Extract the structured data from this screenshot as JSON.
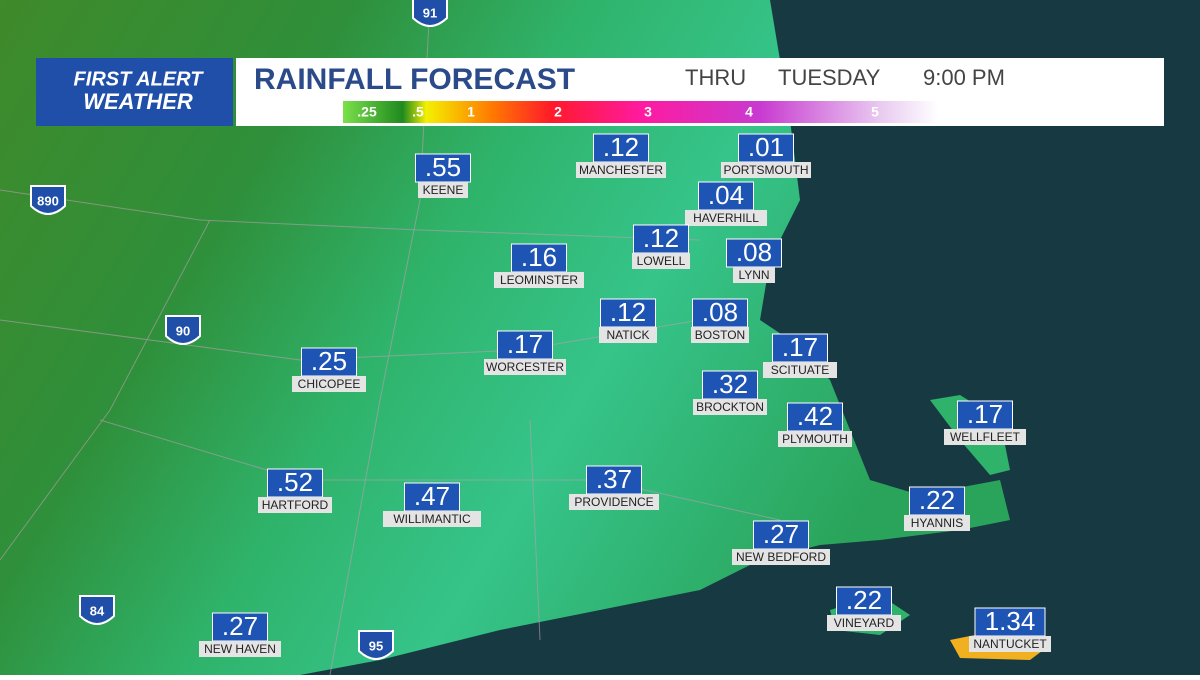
{
  "logo": {
    "line1": "FIRST ALERT",
    "line2": "WEATHER"
  },
  "header": {
    "title": "RAINFALL FORECAST",
    "thru": "THRU",
    "day": "TUESDAY",
    "time": "9:00 PM"
  },
  "legend": [
    ".25",
    ".5",
    "1",
    "2",
    "3",
    "4",
    "5"
  ],
  "cities": [
    {
      "name": "MANCHESTER",
      "value": ".12"
    },
    {
      "name": "PORTSMOUTH",
      "value": ".01"
    },
    {
      "name": "KEENE",
      "value": ".55"
    },
    {
      "name": "HAVERHILL",
      "value": ".04"
    },
    {
      "name": "LOWELL",
      "value": ".12"
    },
    {
      "name": "LYNN",
      "value": ".08"
    },
    {
      "name": "LEOMINSTER",
      "value": ".16"
    },
    {
      "name": "NATICK",
      "value": ".12"
    },
    {
      "name": "BOSTON",
      "value": ".08"
    },
    {
      "name": "CHICOPEE",
      "value": ".25"
    },
    {
      "name": "WORCESTER",
      "value": ".17"
    },
    {
      "name": "SCITUATE",
      "value": ".17"
    },
    {
      "name": "BROCKTON",
      "value": ".32"
    },
    {
      "name": "PLYMOUTH",
      "value": ".42"
    },
    {
      "name": "WELLFLEET",
      "value": ".17"
    },
    {
      "name": "HARTFORD",
      "value": ".52"
    },
    {
      "name": "WILLIMANTIC",
      "value": ".47"
    },
    {
      "name": "PROVIDENCE",
      "value": ".37"
    },
    {
      "name": "HYANNIS",
      "value": ".22"
    },
    {
      "name": "NEW BEDFORD",
      "value": ".27"
    },
    {
      "name": "VINEYARD",
      "value": ".22"
    },
    {
      "name": "NEW HAVEN",
      "value": ".27"
    },
    {
      "name": "NANTUCKET",
      "value": "1.34"
    }
  ],
  "highways": [
    "91",
    "890",
    "90",
    "84",
    "95"
  ]
}
